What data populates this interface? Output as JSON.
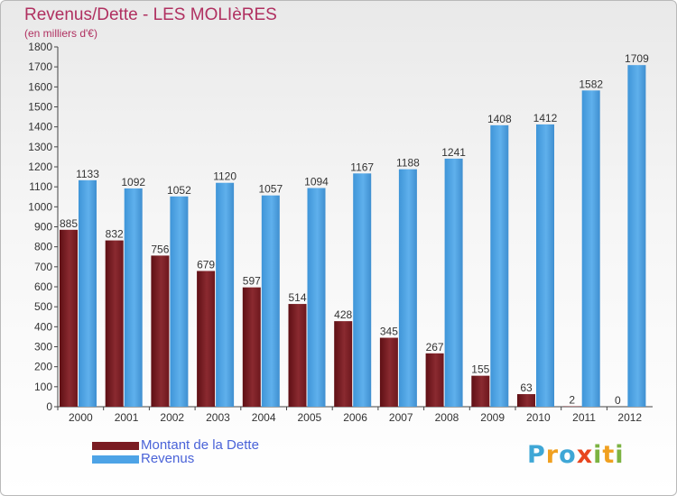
{
  "title": "Revenus/Dette - LES MOLIèRES",
  "subtitle": "(en milliers d'€)",
  "colors": {
    "dette": "#7a1c22",
    "revenus": "#4da3e6",
    "title": "#b03060",
    "legend_text": "#4a63d8"
  },
  "logo": {
    "text": "Proxiti",
    "letters": [
      {
        "ch": "P",
        "color": "#3fa7d6"
      },
      {
        "ch": "r",
        "color": "#f0a020"
      },
      {
        "ch": "o",
        "color": "#3fa7d6"
      },
      {
        "ch": "x",
        "color": "#e8451e"
      },
      {
        "ch": "i",
        "color": "#7cb342"
      },
      {
        "ch": "t",
        "color": "#f0a020"
      },
      {
        "ch": "i",
        "color": "#7cb342"
      }
    ]
  },
  "chart_data": {
    "type": "bar",
    "title": "Revenus/Dette - LES MOLIèRES",
    "subtitle": "(en milliers d'€)",
    "categories": [
      "2000",
      "2001",
      "2002",
      "2003",
      "2004",
      "2005",
      "2006",
      "2007",
      "2008",
      "2009",
      "2010",
      "2011",
      "2012"
    ],
    "series": [
      {
        "name": "Montant de la Dette",
        "values": [
          885,
          832,
          756,
          679,
          597,
          514,
          428,
          345,
          267,
          155,
          63,
          2,
          0
        ]
      },
      {
        "name": "Revenus",
        "values": [
          1133,
          1092,
          1052,
          1120,
          1057,
          1094,
          1167,
          1188,
          1241,
          1408,
          1412,
          1582,
          1709
        ]
      }
    ],
    "ylim": [
      0,
      1800
    ],
    "yticks": [
      0,
      100,
      200,
      300,
      400,
      500,
      600,
      700,
      800,
      900,
      1000,
      1100,
      1200,
      1300,
      1400,
      1500,
      1600,
      1700,
      1800
    ],
    "grid": false,
    "legend_position": "bottom-left"
  }
}
